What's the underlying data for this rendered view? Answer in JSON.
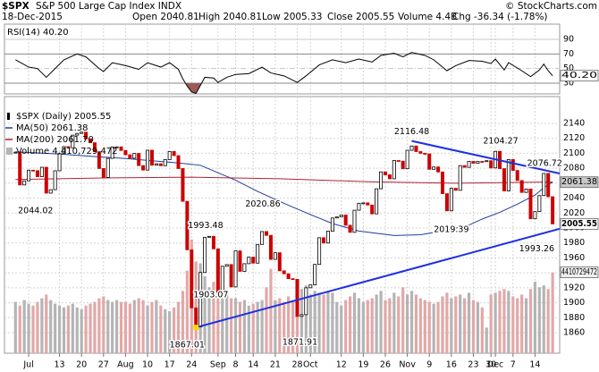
{
  "header": {
    "symbol": "$SPX",
    "name": "S&P 500 Large Cap Index INDX",
    "copyright": "© StockCharts.com",
    "date": "18-Dec-2015",
    "stats": [
      "Open 2040.81",
      "High 2040.81",
      "Low 2005.33",
      "Close 2005.55",
      "Volume 4.4B",
      "Chg -36.34 (-1.78%)"
    ]
  },
  "chart_data": {
    "type": "candlestick",
    "name": "$SPX (Daily) 2005.55",
    "xlim": [
      -2.5,
      123.6
    ],
    "xticks": [
      {
        "value": 3,
        "label": "Jul"
      },
      {
        "value": 10,
        "label": "13"
      },
      {
        "value": 15,
        "label": "20"
      },
      {
        "value": 20,
        "label": "27"
      },
      {
        "value": 25,
        "label": "Aug"
      },
      {
        "value": 30,
        "label": "10"
      },
      {
        "value": 35,
        "label": "17"
      },
      {
        "value": 40,
        "label": "24"
      },
      {
        "value": 46,
        "label": "Sep"
      },
      {
        "value": 50,
        "label": "8"
      },
      {
        "value": 54,
        "label": "14"
      },
      {
        "value": 59,
        "label": "21"
      },
      {
        "value": 64,
        "label": "28"
      },
      {
        "value": 67,
        "label": "Oct"
      },
      {
        "value": 74,
        "label": "12"
      },
      {
        "value": 79,
        "label": "19"
      },
      {
        "value": 84,
        "label": "26"
      },
      {
        "value": 89,
        "label": "Nov"
      },
      {
        "value": 94,
        "label": "9"
      },
      {
        "value": 99,
        "label": "16"
      },
      {
        "value": 104,
        "label": "23"
      },
      {
        "value": 108,
        "label": "30"
      },
      {
        "value": 109,
        "label": "Dec"
      },
      {
        "value": 113,
        "label": "7"
      },
      {
        "value": 118,
        "label": "14"
      }
    ],
    "ylim": [
      1832.5,
      2175.9
    ],
    "yticks": [
      1860,
      1880,
      1900,
      1920,
      1940,
      1960,
      1980,
      2000,
      2020,
      2040,
      2060,
      2080,
      2100,
      2120,
      2140
    ],
    "grid": true,
    "up_color": "#000000",
    "down_color": "#cc0000",
    "closes": [
      2101.49,
      2057.64,
      2063.11,
      2077.42,
      2076.78,
      2068.76,
      2081.34,
      2046.68,
      2051.31,
      2076.62,
      2099.6,
      2108.95,
      2107.4,
      2124.29,
      2126.64,
      2128.28,
      2119.21,
      2114.15,
      2102.15,
      2079.65,
      2067.64,
      2093.25,
      2108.57,
      2108.63,
      2103.84,
      2098.04,
      2093.32,
      2099.84,
      2083.56,
      2077.57,
      2104.18,
      2084.07,
      2086.05,
      2083.39,
      2091.54,
      2102.44,
      2096.92,
      2079.61,
      2035.73,
      1970.89,
      1893.21,
      1867.61,
      1940.51,
      1987.66,
      1988.87,
      1972.18,
      1913.85,
      1948.86,
      1951.13,
      1921.22,
      1969.41,
      1942.04,
      1952.29,
      1961.05,
      1953.03,
      1978.09,
      1995.31,
      1990.2,
      1958.03,
      1966.97,
      1942.74,
      1938.76,
      1932.24,
      1931.34,
      1881.77,
      1884.09,
      1920.03,
      1923.82,
      1951.36,
      1987.05,
      1979.92,
      1995.83,
      2013.43,
      2014.89,
      2017.46,
      2003.69,
      1994.24,
      2023.86,
      2033.11,
      2033.66,
      2030.77,
      2018.94,
      2052.51,
      2075.15,
      2071.18,
      2065.89,
      2090.35,
      2089.41,
      2079.36,
      2104.05,
      2109.79,
      2102.31,
      2099.93,
      2099.2,
      2078.58,
      2081.72,
      2075.0,
      2045.97,
      2023.04,
      2053.19,
      2050.44,
      2083.58,
      2081.24,
      2089.17,
      2086.59,
      2089.14,
      2088.87,
      2090.11,
      2080.41,
      2102.63,
      2079.51,
      2049.62,
      2091.69,
      2077.07,
      2063.59,
      2047.62,
      2052.23,
      2012.37,
      2021.94,
      2043.41,
      2073.07,
      2041.89,
      2005.55
    ],
    "volume_name": "Volume 4,410,729,472",
    "volume_lim": [
      0,
      14000000000
    ],
    "volume_up_color": "#b4b4b4",
    "volume_down_color": "#e2a8a8",
    "volume": [
      2800000000.0,
      2600000000.0,
      2900000000.0,
      2700000000.0,
      2600000000.0,
      2800000000.0,
      3000000000.0,
      3200000000.0,
      2900000000.0,
      2700000000.0,
      2600000000.0,
      2500000000.0,
      2600000000.0,
      2700000000.0,
      2500000000.0,
      2400000000.0,
      2600000000.0,
      2700000000.0,
      2800000000.0,
      3000000000.0,
      3100000000.0,
      2900000000.0,
      2800000000.0,
      2900000000.0,
      2800000000.0,
      2800000000.0,
      2700000000.0,
      2900000000.0,
      3000000000.0,
      2900000000.0,
      2600000000.0,
      2800000000.0,
      2900000000.0,
      2600000000.0,
      2400000000.0,
      2300000000.0,
      2500000000.0,
      2800000000.0,
      3400000000.0,
      4500000000.0,
      6200000000.0,
      5000000000.0,
      4900000000.0,
      4200000000.0,
      3600000000.0,
      3900000000.0,
      4300000000.0,
      3700000000.0,
      3200000000.0,
      3000000000.0,
      3000000000.0,
      2800000000.0,
      2900000000.0,
      2600000000.0,
      2700000000.0,
      2800000000.0,
      2900000000.0,
      3600000000.0,
      4600000000.0,
      2900000000.0,
      3000000000.0,
      2800000000.0,
      3100000000.0,
      2900000000.0,
      3200000000.0,
      3500000000.0,
      3700000000.0,
      3200000000.0,
      3400000000.0,
      3300000000.0,
      3200000000.0,
      3400000000.0,
      3300000000.0,
      2800000000.0,
      2600000000.0,
      2900000000.0,
      3100000000.0,
      3300000000.0,
      3000000000.0,
      2800000000.0,
      2900000000.0,
      3000000000.0,
      3200000000.0,
      3400000000.0,
      2900000000.0,
      3000000000.0,
      3300000000.0,
      3100000000.0,
      3600000000.0,
      3200000000.0,
      3400000000.0,
      3200000000.0,
      3000000000.0,
      2900000000.0,
      2800000000.0,
      2700000000.0,
      2800000000.0,
      3100000000.0,
      3300000000.0,
      3000000000.0,
      3100000000.0,
      3200000000.0,
      3000000000.0,
      3300000000.0,
      2900000000.0,
      2800000000.0,
      2500000000.0,
      1400000000.0,
      3200000000.0,
      3300000000.0,
      3400000000.0,
      3500000000.0,
      3400000000.0,
      3100000000.0,
      3000000000.0,
      3200000000.0,
      3000000000.0,
      3500000000.0,
      3900000000.0,
      3600000000.0,
      3700000000.0,
      3500000000.0,
      4410729472
    ],
    "overlays": [
      {
        "name": "MA(50) 2061.38",
        "color": "#1f3a9e",
        "x": [
          0,
          10,
          17,
          25,
          37,
          42,
          46,
          50,
          55,
          61,
          67,
          72,
          78,
          86,
          92,
          98,
          103,
          106,
          110,
          114,
          118,
          120,
          122
        ],
        "values": [
          2102,
          2099,
          2096,
          2093,
          2087,
          2084,
          2074,
          2064,
          2049,
          2033,
          2018,
          2006,
          1996,
          1990,
          1991,
          1997,
          2004,
          2012,
          2021,
          2032,
          2044,
          2054,
          2061.38
        ]
      },
      {
        "name": "MA(200) 2061.70",
        "color": "#b22234",
        "x": [
          0,
          20,
          40,
          60,
          80,
          100,
          122
        ],
        "values": [
          2065,
          2067,
          2068,
          2066,
          2062,
          2060,
          2061.7
        ]
      }
    ],
    "trendlines": [
      {
        "color": "#1e2fe0",
        "x": [
          41,
          123.6
        ],
        "y": [
          1867.01,
          1999
        ]
      },
      {
        "color": "#1e2fe0",
        "x": [
          90,
          123.6
        ],
        "y": [
          2116.48,
          2073
        ]
      }
    ],
    "annotations": [
      {
        "x": 7,
        "value": 2044.02
      },
      {
        "x": 44,
        "value": 1993.48
      },
      {
        "x": 46,
        "value": 1903.07
      },
      {
        "x": 40,
        "value": 1867.01
      },
      {
        "x": 57,
        "value": 2020.86
      },
      {
        "x": 64,
        "value": 1871.91
      },
      {
        "x": 90,
        "value": 2116.48
      },
      {
        "x": 110,
        "value": 2104.27
      },
      {
        "x": 120,
        "value": 2076.72
      },
      {
        "x": 99,
        "value": 2019.39
      },
      {
        "x": 118,
        "value": 1993.26
      }
    ],
    "rsi": {
      "label": "RSI(14) 40.20",
      "color": "#000000",
      "ylim": [
        15.3,
        110.8
      ],
      "yticks": [
        30,
        50,
        70,
        90
      ],
      "x": [
        0,
        3,
        5,
        7,
        9,
        11,
        14,
        16,
        19,
        20,
        22,
        25,
        28,
        30,
        33,
        35,
        37,
        38,
        39,
        40,
        41,
        43,
        45,
        46,
        48,
        50,
        53,
        56,
        58,
        61,
        64,
        66,
        69,
        72,
        75,
        78,
        81,
        83,
        86,
        88,
        90,
        93,
        95,
        98,
        100,
        103,
        106,
        108,
        109,
        111,
        112,
        115,
        117,
        119,
        120,
        121,
        122
      ],
      "values": [
        62,
        52,
        50,
        38,
        50,
        62,
        70,
        66,
        50,
        46,
        58,
        54,
        49,
        58,
        52,
        58,
        49,
        36,
        26,
        18,
        16,
        38,
        37,
        31,
        38,
        42,
        43,
        52,
        44,
        40,
        31,
        40,
        55,
        62,
        58,
        63,
        59,
        68,
        71,
        66,
        72,
        68,
        62,
        47,
        54,
        61,
        60,
        57,
        63,
        48,
        58,
        47,
        39,
        48,
        56,
        47,
        40.2
      ],
      "last": {
        "value": 40.2,
        "label": "40.20"
      }
    }
  }
}
